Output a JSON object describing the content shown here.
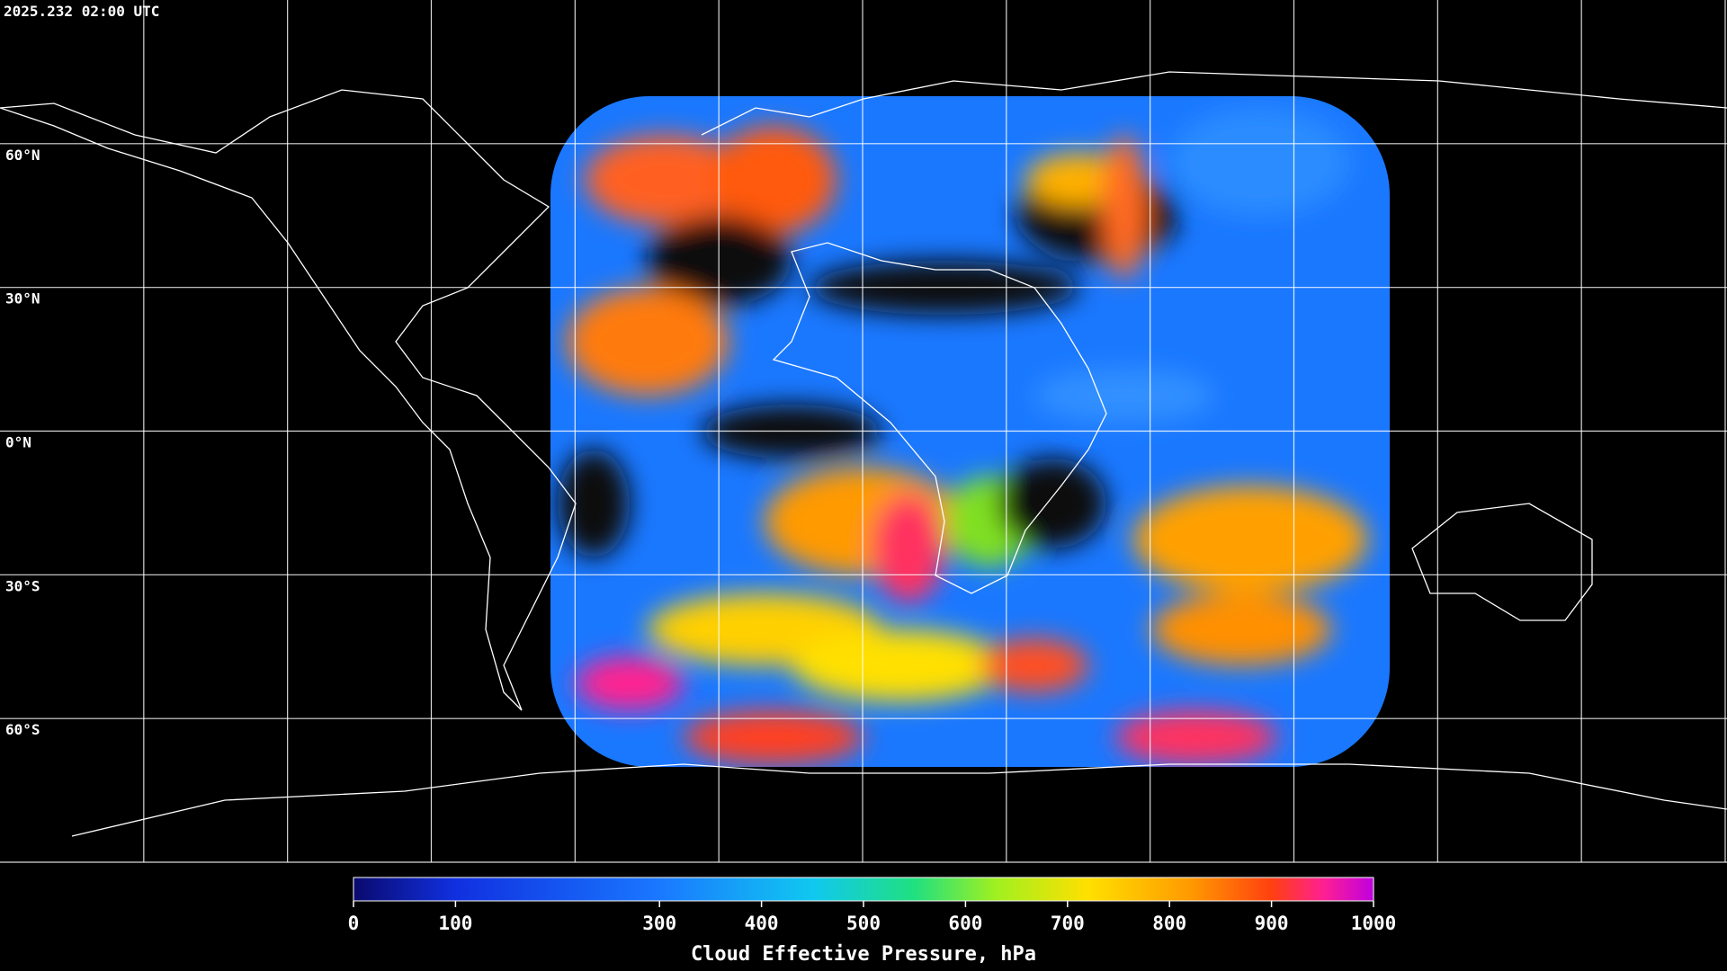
{
  "header": {
    "timestamp": "2025.232 02:00 UTC"
  },
  "map": {
    "lat_labels": [
      "60°N",
      "30°N",
      "0°N",
      "30°S",
      "60°S"
    ]
  },
  "colorbar": {
    "label": "Cloud Effective Pressure, hPa",
    "range": [
      0,
      1000
    ],
    "ticks": [
      0,
      100,
      300,
      400,
      500,
      600,
      700,
      800,
      900,
      1000
    ]
  }
}
